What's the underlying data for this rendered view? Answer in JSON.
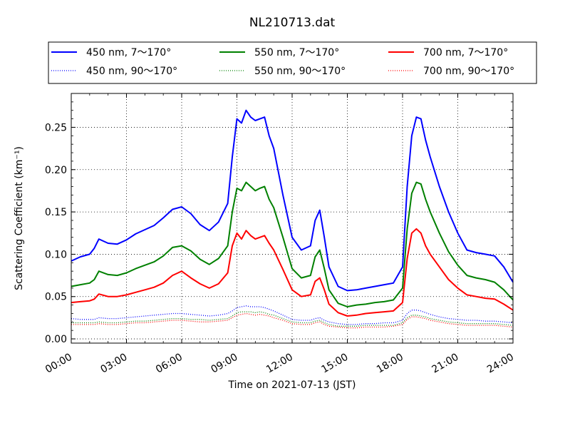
{
  "chart_data": {
    "type": "line",
    "title": "NL210713.dat",
    "xlabel": "Time on 2021-07-13 (JST)",
    "ylabel": "Scattering Coefficient (km⁻¹)",
    "x_unit": "hours",
    "xlim": [
      0,
      24
    ],
    "ylim": [
      -0.005,
      0.29
    ],
    "x_ticks": [
      "00:00",
      "03:00",
      "06:00",
      "09:00",
      "12:00",
      "15:00",
      "18:00",
      "21:00",
      "24:00"
    ],
    "y_ticks": [
      "0.00",
      "0.05",
      "0.10",
      "0.15",
      "0.20",
      "0.25"
    ],
    "grid": true,
    "legend_position": "top",
    "x": [
      0,
      0.5,
      1,
      1.25,
      1.5,
      2,
      2.5,
      3,
      3.5,
      4,
      4.5,
      5,
      5.5,
      6,
      6.5,
      7,
      7.5,
      8,
      8.5,
      8.75,
      9,
      9.25,
      9.5,
      9.75,
      10,
      10.25,
      10.5,
      10.75,
      11,
      11.5,
      12,
      12.5,
      13,
      13.25,
      13.5,
      13.75,
      14,
      14.5,
      15,
      15.5,
      16,
      16.5,
      17,
      17.5,
      18,
      18.25,
      18.5,
      18.75,
      19,
      19.25,
      19.5,
      20,
      20.5,
      21,
      21.5,
      22,
      22.5,
      23,
      23.5,
      24
    ],
    "series": [
      {
        "name": "450 nm, 7～170°",
        "color": "#0000ff",
        "style": "solid",
        "values": [
          0.092,
          0.097,
          0.1,
          0.107,
          0.118,
          0.113,
          0.112,
          0.117,
          0.124,
          0.129,
          0.134,
          0.143,
          0.153,
          0.156,
          0.148,
          0.135,
          0.128,
          0.138,
          0.16,
          0.215,
          0.26,
          0.255,
          0.27,
          0.262,
          0.258,
          0.26,
          0.262,
          0.24,
          0.225,
          0.17,
          0.12,
          0.105,
          0.11,
          0.14,
          0.152,
          0.12,
          0.085,
          0.062,
          0.057,
          0.058,
          0.06,
          0.062,
          0.064,
          0.066,
          0.085,
          0.18,
          0.24,
          0.262,
          0.26,
          0.235,
          0.215,
          0.18,
          0.15,
          0.125,
          0.105,
          0.102,
          0.1,
          0.098,
          0.085,
          0.067
        ]
      },
      {
        "name": "550 nm, 7～170°",
        "color": "#008000",
        "style": "solid",
        "values": [
          0.062,
          0.064,
          0.066,
          0.07,
          0.08,
          0.076,
          0.075,
          0.078,
          0.083,
          0.087,
          0.091,
          0.098,
          0.108,
          0.11,
          0.104,
          0.094,
          0.088,
          0.095,
          0.11,
          0.15,
          0.178,
          0.175,
          0.185,
          0.18,
          0.175,
          0.178,
          0.18,
          0.165,
          0.155,
          0.12,
          0.083,
          0.072,
          0.075,
          0.097,
          0.105,
          0.083,
          0.058,
          0.042,
          0.038,
          0.04,
          0.041,
          0.043,
          0.044,
          0.046,
          0.06,
          0.13,
          0.172,
          0.185,
          0.183,
          0.165,
          0.15,
          0.125,
          0.103,
          0.087,
          0.075,
          0.072,
          0.07,
          0.067,
          0.058,
          0.046
        ]
      },
      {
        "name": "700 nm, 7～170°",
        "color": "#ff0000",
        "style": "solid",
        "values": [
          0.043,
          0.044,
          0.045,
          0.047,
          0.053,
          0.05,
          0.05,
          0.052,
          0.055,
          0.058,
          0.061,
          0.066,
          0.075,
          0.08,
          0.072,
          0.065,
          0.06,
          0.065,
          0.078,
          0.11,
          0.125,
          0.118,
          0.128,
          0.122,
          0.118,
          0.12,
          0.122,
          0.113,
          0.105,
          0.082,
          0.058,
          0.05,
          0.052,
          0.068,
          0.072,
          0.058,
          0.041,
          0.031,
          0.027,
          0.028,
          0.03,
          0.031,
          0.032,
          0.033,
          0.043,
          0.095,
          0.125,
          0.13,
          0.125,
          0.11,
          0.1,
          0.085,
          0.07,
          0.06,
          0.052,
          0.05,
          0.048,
          0.047,
          0.041,
          0.034
        ]
      },
      {
        "name": "450 nm, 90～170°",
        "color": "#0000ff",
        "style": "dotted",
        "values": [
          0.024,
          0.023,
          0.023,
          0.023,
          0.025,
          0.024,
          0.024,
          0.025,
          0.026,
          0.027,
          0.028,
          0.029,
          0.03,
          0.03,
          0.029,
          0.028,
          0.027,
          0.028,
          0.03,
          0.033,
          0.037,
          0.038,
          0.039,
          0.038,
          0.038,
          0.038,
          0.037,
          0.035,
          0.033,
          0.028,
          0.023,
          0.022,
          0.022,
          0.024,
          0.025,
          0.022,
          0.02,
          0.018,
          0.017,
          0.017,
          0.018,
          0.018,
          0.019,
          0.019,
          0.022,
          0.03,
          0.034,
          0.034,
          0.033,
          0.031,
          0.029,
          0.026,
          0.024,
          0.023,
          0.022,
          0.022,
          0.021,
          0.021,
          0.02,
          0.019
        ]
      },
      {
        "name": "550 nm, 90～170°",
        "color": "#008000",
        "style": "dotted",
        "values": [
          0.019,
          0.019,
          0.019,
          0.019,
          0.02,
          0.019,
          0.019,
          0.02,
          0.021,
          0.021,
          0.022,
          0.023,
          0.024,
          0.024,
          0.023,
          0.023,
          0.022,
          0.023,
          0.024,
          0.027,
          0.031,
          0.032,
          0.032,
          0.032,
          0.031,
          0.032,
          0.031,
          0.029,
          0.028,
          0.024,
          0.02,
          0.019,
          0.019,
          0.021,
          0.022,
          0.019,
          0.017,
          0.015,
          0.015,
          0.015,
          0.016,
          0.016,
          0.016,
          0.016,
          0.019,
          0.025,
          0.028,
          0.028,
          0.027,
          0.026,
          0.024,
          0.022,
          0.02,
          0.019,
          0.018,
          0.018,
          0.018,
          0.018,
          0.017,
          0.016
        ]
      },
      {
        "name": "700 nm, 90～170°",
        "color": "#ff0000",
        "style": "dotted",
        "values": [
          0.017,
          0.017,
          0.017,
          0.017,
          0.018,
          0.017,
          0.017,
          0.018,
          0.019,
          0.019,
          0.02,
          0.021,
          0.022,
          0.022,
          0.021,
          0.02,
          0.02,
          0.021,
          0.022,
          0.025,
          0.028,
          0.029,
          0.03,
          0.029,
          0.028,
          0.029,
          0.028,
          0.027,
          0.025,
          0.022,
          0.018,
          0.017,
          0.017,
          0.019,
          0.02,
          0.017,
          0.015,
          0.014,
          0.013,
          0.013,
          0.014,
          0.014,
          0.014,
          0.015,
          0.017,
          0.023,
          0.026,
          0.026,
          0.025,
          0.024,
          0.022,
          0.02,
          0.018,
          0.017,
          0.016,
          0.016,
          0.016,
          0.016,
          0.015,
          0.014
        ]
      }
    ]
  }
}
